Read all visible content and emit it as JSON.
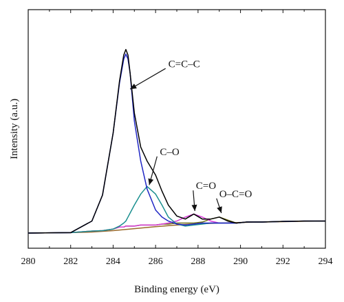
{
  "chart_data": {
    "type": "line",
    "title": "",
    "xlabel": "Binding energy (eV)",
    "ylabel": "Intensity (a.u.)",
    "xlim": [
      280,
      294
    ],
    "ylim": [
      0,
      1.0
    ],
    "x_ticks": [
      280,
      282,
      284,
      286,
      288,
      290,
      292,
      294
    ],
    "y_ticks_shown": false,
    "grid": false,
    "legend": "none",
    "series": [
      {
        "role": "raw spectrum",
        "color": "#000000",
        "x": [
          280.0,
          282.0,
          283.0,
          283.5,
          284.0,
          284.3,
          284.5,
          284.6,
          284.7,
          284.8,
          285.0,
          285.3,
          285.6,
          286.0,
          286.3,
          286.6,
          287.0,
          287.4,
          287.8,
          288.2,
          288.6,
          289.0,
          289.4,
          289.8,
          290.3,
          291.0,
          292.0,
          293.0,
          294.0
        ],
        "y": [
          0.0,
          0.002,
          0.06,
          0.19,
          0.5,
          0.76,
          0.89,
          0.918,
          0.89,
          0.8,
          0.6,
          0.43,
          0.36,
          0.29,
          0.21,
          0.14,
          0.085,
          0.07,
          0.095,
          0.07,
          0.07,
          0.08,
          0.06,
          0.05,
          0.055,
          0.055,
          0.058,
          0.06,
          0.06
        ]
      },
      {
        "role": "C=C-C component",
        "color": "#1f26c4",
        "x": [
          280.0,
          282.0,
          283.0,
          283.5,
          284.0,
          284.3,
          284.5,
          284.6,
          284.7,
          284.8,
          285.0,
          285.3,
          285.6,
          286.0,
          286.3,
          286.6,
          287.0,
          287.4,
          287.8,
          288.2,
          288.6,
          289.0,
          289.4,
          289.8,
          290.3,
          291.0,
          292.0,
          293.0,
          294.0
        ],
        "y": [
          0.0,
          0.002,
          0.06,
          0.19,
          0.5,
          0.75,
          0.87,
          0.895,
          0.87,
          0.8,
          0.56,
          0.36,
          0.22,
          0.115,
          0.08,
          0.06,
          0.045,
          0.04,
          0.045,
          0.05,
          0.05,
          0.05,
          0.05,
          0.05,
          0.055,
          0.055,
          0.058,
          0.06,
          0.06
        ]
      },
      {
        "role": "C-O component",
        "color": "#1a8f8f",
        "x": [
          280.0,
          282.0,
          283.0,
          283.5,
          284.0,
          284.3,
          284.5,
          284.6,
          284.7,
          284.8,
          285.0,
          285.3,
          285.6,
          286.0,
          286.3,
          286.6,
          287.0,
          287.4,
          287.8,
          288.2,
          288.6,
          289.0,
          289.4,
          289.8,
          290.3,
          291.0,
          292.0,
          293.0,
          294.0
        ],
        "y": [
          0.0,
          0.002,
          0.01,
          0.012,
          0.02,
          0.035,
          0.05,
          0.06,
          0.08,
          0.1,
          0.14,
          0.195,
          0.233,
          0.195,
          0.14,
          0.08,
          0.045,
          0.035,
          0.04,
          0.045,
          0.05,
          0.05,
          0.05,
          0.05,
          0.055,
          0.055,
          0.058,
          0.06,
          0.06
        ]
      },
      {
        "role": "C=O component",
        "color": "#d63ad6",
        "x": [
          280.0,
          282.0,
          283.0,
          283.5,
          284.0,
          284.3,
          284.5,
          284.6,
          284.7,
          284.8,
          285.0,
          285.3,
          285.6,
          286.0,
          286.3,
          286.6,
          287.0,
          287.4,
          287.8,
          288.2,
          288.6,
          289.0,
          289.4,
          289.8,
          290.3,
          291.0,
          292.0,
          293.0,
          294.0
        ],
        "y": [
          0.0,
          0.002,
          0.01,
          0.012,
          0.02,
          0.03,
          0.03,
          0.035,
          0.035,
          0.035,
          0.035,
          0.04,
          0.04,
          0.04,
          0.045,
          0.05,
          0.06,
          0.08,
          0.095,
          0.08,
          0.06,
          0.05,
          0.05,
          0.05,
          0.055,
          0.055,
          0.058,
          0.06,
          0.06
        ]
      },
      {
        "role": "O-C=O component",
        "color": "#6b6b14",
        "x": [
          280.0,
          282.0,
          283.0,
          283.5,
          284.0,
          284.3,
          284.5,
          284.6,
          284.7,
          284.8,
          285.0,
          285.3,
          285.6,
          286.0,
          286.3,
          286.6,
          287.0,
          287.4,
          287.8,
          288.2,
          288.6,
          289.0,
          289.4,
          289.8,
          290.3,
          291.0,
          292.0,
          293.0,
          294.0
        ],
        "y": [
          0.0,
          0.002,
          0.01,
          0.012,
          0.02,
          0.03,
          0.03,
          0.035,
          0.035,
          0.035,
          0.035,
          0.04,
          0.04,
          0.04,
          0.045,
          0.045,
          0.05,
          0.05,
          0.05,
          0.055,
          0.07,
          0.08,
          0.065,
          0.05,
          0.055,
          0.055,
          0.058,
          0.06,
          0.06
        ]
      },
      {
        "role": "background",
        "color": "#9a6a2a",
        "x": [
          280.0,
          282.0,
          283.0,
          284.0,
          285.0,
          286.0,
          287.0,
          288.0,
          289.0,
          290.0,
          291.0,
          292.0,
          293.0,
          294.0
        ],
        "y": [
          0.0,
          0.002,
          0.005,
          0.012,
          0.022,
          0.032,
          0.04,
          0.046,
          0.05,
          0.053,
          0.055,
          0.057,
          0.059,
          0.06
        ]
      }
    ],
    "annotations": [
      {
        "text": "C=C–C",
        "text_at": [
          286.6,
          0.83
        ],
        "arrow_to": [
          284.8,
          0.72
        ]
      },
      {
        "text": "C–O",
        "text_at": [
          286.2,
          0.39
        ],
        "arrow_to": [
          285.7,
          0.24
        ]
      },
      {
        "text": "C=O",
        "text_at": [
          287.9,
          0.22
        ],
        "arrow_to": [
          287.85,
          0.11
        ]
      },
      {
        "text": "O–C=O",
        "text_at": [
          289.0,
          0.18
        ],
        "arrow_to": [
          289.1,
          0.1
        ]
      }
    ]
  }
}
